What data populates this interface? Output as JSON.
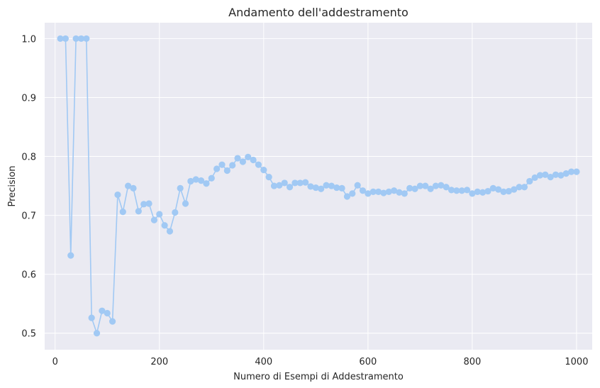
{
  "chart_data": {
    "type": "line",
    "title": "Andamento dell'addestramento",
    "xlabel": "Numero di Esempi di Addestramento",
    "ylabel": "Precision",
    "xlim": [
      -20,
      1030
    ],
    "ylim": [
      0.472,
      1.027
    ],
    "xticks": [
      0,
      200,
      400,
      600,
      800,
      1000
    ],
    "xtick_labels": [
      "0",
      "200",
      "400",
      "600",
      "800",
      "1000"
    ],
    "yticks": [
      0.5,
      0.6,
      0.7,
      0.8,
      0.9,
      1.0
    ],
    "ytick_labels": [
      "0.5",
      "0.6",
      "0.7",
      "0.8",
      "0.9",
      "1.0"
    ],
    "grid": true,
    "style": {
      "background": "#eaeaf2",
      "grid_color": "#ffffff",
      "line_color": "#a1c9f4",
      "marker_color": "#a1c9f4"
    },
    "series": [
      {
        "name": "",
        "marker": "circle",
        "x": [
          10,
          20,
          30,
          40,
          50,
          60,
          70,
          80,
          90,
          100,
          110,
          120,
          130,
          140,
          150,
          160,
          170,
          180,
          190,
          200,
          210,
          220,
          230,
          240,
          250,
          260,
          270,
          280,
          290,
          300,
          310,
          320,
          330,
          340,
          350,
          360,
          370,
          380,
          390,
          400,
          410,
          420,
          430,
          440,
          450,
          460,
          470,
          480,
          490,
          500,
          510,
          520,
          530,
          540,
          550,
          560,
          570,
          580,
          590,
          600,
          610,
          620,
          630,
          640,
          650,
          660,
          670,
          680,
          690,
          700,
          710,
          720,
          730,
          740,
          750,
          760,
          770,
          780,
          790,
          800,
          810,
          820,
          830,
          840,
          850,
          860,
          870,
          880,
          890,
          900,
          910,
          920,
          930,
          940,
          950,
          960,
          970,
          980,
          990,
          1000
        ],
        "y": [
          1.0,
          1.0,
          0.632,
          1.0,
          1.0,
          1.0,
          0.526,
          0.5,
          0.538,
          0.534,
          0.52,
          0.735,
          0.706,
          0.75,
          0.746,
          0.707,
          0.719,
          0.72,
          0.692,
          0.702,
          0.683,
          0.673,
          0.705,
          0.746,
          0.72,
          0.758,
          0.761,
          0.759,
          0.754,
          0.763,
          0.779,
          0.786,
          0.776,
          0.785,
          0.797,
          0.791,
          0.799,
          0.794,
          0.786,
          0.777,
          0.765,
          0.75,
          0.751,
          0.755,
          0.748,
          0.755,
          0.755,
          0.756,
          0.749,
          0.747,
          0.745,
          0.751,
          0.75,
          0.747,
          0.746,
          0.732,
          0.737,
          0.751,
          0.742,
          0.737,
          0.74,
          0.74,
          0.738,
          0.74,
          0.742,
          0.739,
          0.737,
          0.746,
          0.745,
          0.75,
          0.75,
          0.745,
          0.75,
          0.751,
          0.748,
          0.743,
          0.742,
          0.742,
          0.743,
          0.737,
          0.74,
          0.739,
          0.741,
          0.746,
          0.744,
          0.74,
          0.741,
          0.744,
          0.748,
          0.748,
          0.758,
          0.764,
          0.768,
          0.769,
          0.765,
          0.769,
          0.768,
          0.771,
          0.774,
          0.774
        ]
      }
    ]
  }
}
